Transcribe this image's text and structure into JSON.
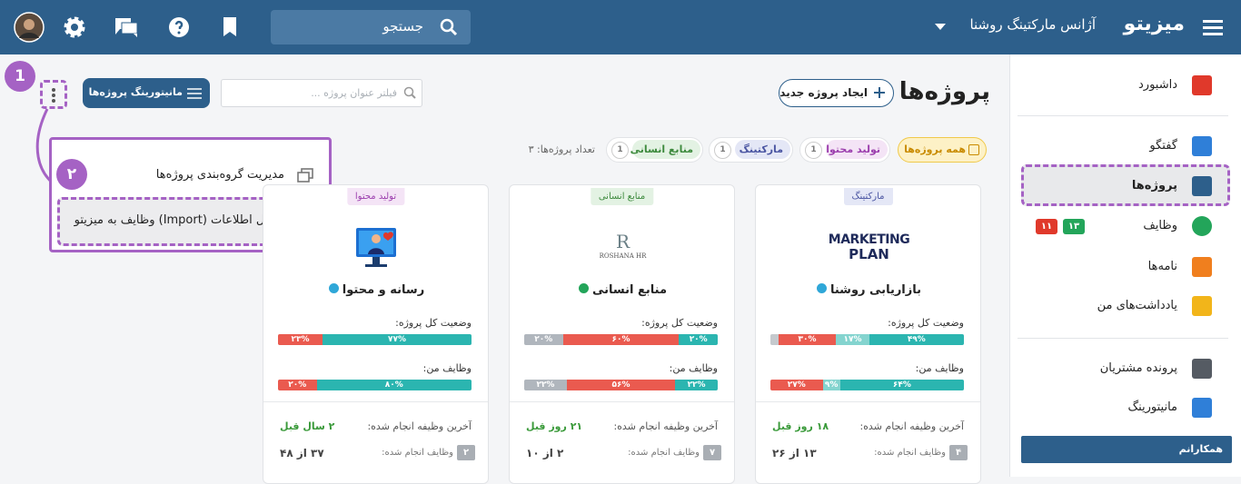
{
  "topbar": {
    "brand": "میزیتو",
    "org": "آژانس مارکتینگ روشنا",
    "search": "جستجو"
  },
  "sidebar": {
    "items": [
      "داشبورد",
      "گفتگو",
      "پروژه‌ها",
      "وظایف",
      "نامه‌ها",
      "یادداشت‌های من",
      "پرونده مشتریان",
      "مانیتورینگ"
    ],
    "task_badges": [
      "۱۳",
      "۱۱"
    ],
    "section": "همکارانم"
  },
  "header": {
    "title": "پروژه‌ها",
    "new_project": "ایجاد پروژه جدید",
    "filter_placeholder": "فیلتر عنوان پروژه ...",
    "monitoring": "مانیتورینگ پروژه‌ها"
  },
  "filters": {
    "chips": [
      {
        "label": "همه پروژه‌ها"
      },
      {
        "label": "تولید محتوا",
        "count": "1"
      },
      {
        "label": "مارکتینگ",
        "count": "1"
      },
      {
        "label": "منابع انسانی",
        "count": "1"
      }
    ],
    "count_label": "تعداد پروژه‌ها:",
    "count": "۳"
  },
  "annotations": [
    "1",
    "۲"
  ],
  "menu": {
    "items": [
      "مدیریت گروه‌بندی پروژه‌ها",
      "انتقال اطلاعات (Import) وظایف به میزیتو"
    ]
  },
  "cards": [
    {
      "tag": "مارکتینگ",
      "tag_color": "#4a55a2",
      "tag_bg": "#e4e7f6",
      "logo": [
        "MARKETING",
        "PLAN"
      ],
      "name": "بازاریابی روشنا",
      "status_label": "وضعیت کل پروژه:",
      "status": [
        {
          "value": 49,
          "label": "۴۹%",
          "color": "#2bb5b0"
        },
        {
          "value": 17,
          "label": "۱۷%",
          "color": "#84d4cf"
        },
        {
          "value": 30,
          "label": "۳۰%",
          "color": "#ea5a4f"
        },
        {
          "value": 4,
          "label": null,
          "color": "#c5c9cd"
        }
      ],
      "mine_label": "وظایف من:",
      "mine": [
        {
          "value": 64,
          "label": "۶۴%",
          "color": "#2bb5b0"
        },
        {
          "value": 9,
          "label": "۹%",
          "color": "#84d4cf"
        },
        {
          "value": 27,
          "label": "۲۷%",
          "color": "#ea5a4f"
        }
      ],
      "last_label": "آخرین وظیفه انجام شده:",
      "last": "۱۸ روز قبل",
      "done_label": "وظایف انجام شده:",
      "done": "۱۳ از ۲۶",
      "badge": "۴"
    },
    {
      "tag": "منابع انسانی",
      "tag_color": "#3d8a3d",
      "tag_bg": "#e3f2e3",
      "logo": [
        "R",
        "ROSHANA HR"
      ],
      "name": "منابع انسانی",
      "status_label": "وضعیت کل پروژه:",
      "status": [
        {
          "value": 20,
          "label": "۲۰%",
          "color": "#2bb5b0"
        },
        {
          "value": 60,
          "label": "۶۰%",
          "color": "#ea5a4f"
        },
        {
          "value": 20,
          "label": "۲۰%",
          "color": "#b0b6bd"
        }
      ],
      "mine_label": "وظایف من:",
      "mine": [
        {
          "value": 22,
          "label": "۲۲%",
          "color": "#2bb5b0"
        },
        {
          "value": 56,
          "label": "۵۶%",
          "color": "#ea5a4f"
        },
        {
          "value": 22,
          "label": "۲۲%",
          "color": "#b0b6bd"
        }
      ],
      "last_label": "آخرین وظیفه انجام شده:",
      "last": "۲۱ روز قبل",
      "done_label": "وظایف انجام شده:",
      "done": "۲ از ۱۰",
      "badge": "۷"
    },
    {
      "tag": "تولید محتوا",
      "tag_color": "#9c3fae",
      "tag_bg": "#f4e4f6",
      "logo": [],
      "name": "رسانه و محتوا",
      "status_label": "وضعیت کل پروژه:",
      "status": [
        {
          "value": 77,
          "label": "۷۷%",
          "color": "#2bb5b0"
        },
        {
          "value": 23,
          "label": "۲۳%",
          "color": "#ea5a4f"
        }
      ],
      "mine_label": "وظایف من:",
      "mine": [
        {
          "value": 80,
          "label": "۸۰%",
          "color": "#2bb5b0"
        },
        {
          "value": 20,
          "label": "۲۰%",
          "color": "#ea5a4f"
        }
      ],
      "last_label": "آخرین وظیفه انجام شده:",
      "last": "۲ سال قبل",
      "done_label": "وظایف انجام شده:",
      "done": "۳۷ از ۴۸",
      "badge": "۲"
    }
  ]
}
